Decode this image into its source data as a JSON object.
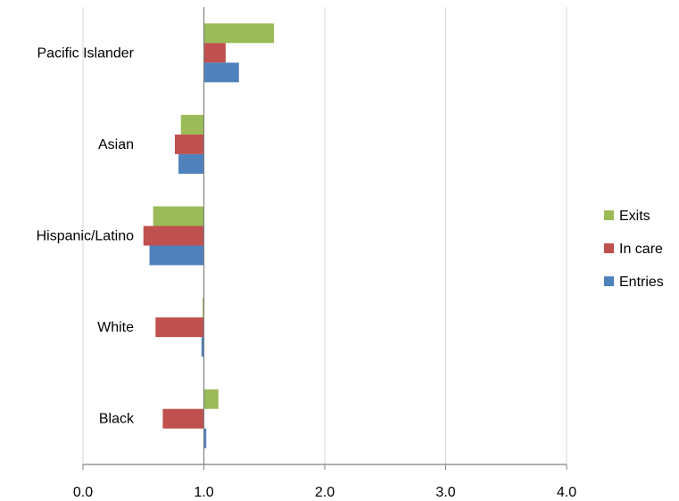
{
  "chart_data": {
    "type": "bar",
    "orientation": "horizontal",
    "categories": [
      "Pacific Islander",
      "Asian",
      "Hispanic/Latino",
      "White",
      "Black"
    ],
    "series": [
      {
        "name": "Exits",
        "color": "#9BBB59",
        "values": [
          1.58,
          0.81,
          0.58,
          0.99,
          1.12
        ]
      },
      {
        "name": "In care",
        "color": "#C0504D",
        "values": [
          1.18,
          0.76,
          0.5,
          0.6,
          0.66
        ]
      },
      {
        "name": "Entries",
        "color": "#4F81BD",
        "values": [
          1.29,
          0.79,
          0.55,
          0.98,
          1.02
        ]
      }
    ],
    "xlim": [
      0,
      4
    ],
    "xticks": [
      "0.0",
      "1.0",
      "2.0",
      "3.0",
      "4.0"
    ],
    "baseline": 1.0,
    "grid": "vertical",
    "legend_position": "right",
    "title": "",
    "xlabel": "",
    "ylabel": ""
  }
}
